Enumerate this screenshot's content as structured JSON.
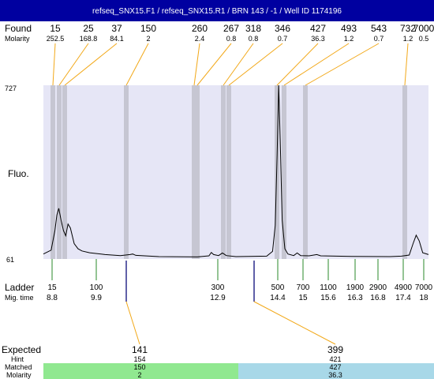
{
  "header": {
    "title": "refseq_SNX15.F1 / refseq_SNX15.R1 / BRN 143 / -1 / Well ID 1174196"
  },
  "labels": {
    "found": "Found",
    "molarity": "Molarity",
    "fluo": "Fluo.",
    "ladder": "Ladder",
    "mig_time": "Mig. time",
    "expected": "Expected",
    "hint": "Hint",
    "matched": "Matched",
    "molarity_bottom": "Molarity"
  },
  "colors": {
    "plot_bg": "#e6e6f6",
    "found_band": "#c6c6d2",
    "found_line": "#f2a818",
    "ladder_tick": "#2a8a2a",
    "ladder_marker": "#2a2a8a",
    "matched_green": "#90e890",
    "matched_blue": "#a8d8e8",
    "trace": "#000000"
  },
  "chart_data": {
    "type": "line",
    "title": "refseq_SNX15.F1 / refseq_SNX15.R1 / BRN 143 / -1 / Well ID 1174196",
    "ylabel": "Fluo.",
    "ylim": [
      61,
      727
    ],
    "y_ticks": [
      "727",
      "61"
    ],
    "grid": false,
    "found_peaks": [
      {
        "size": "15",
        "molarity": "252.5"
      },
      {
        "size": "25",
        "molarity": "168.8"
      },
      {
        "size": "37",
        "molarity": "84.1"
      },
      {
        "size": "150",
        "molarity": "2"
      },
      {
        "size": "260",
        "molarity": "2.4"
      },
      {
        "size": "267",
        "molarity": "0.8"
      },
      {
        "size": "318",
        "molarity": "0.8"
      },
      {
        "size": "346",
        "molarity": "0.7"
      },
      {
        "size": "427",
        "molarity": "36.3"
      },
      {
        "size": "493",
        "molarity": "1.2"
      },
      {
        "size": "543",
        "molarity": "0.7"
      },
      {
        "size": "732",
        "molarity": "1.2"
      },
      {
        "size": "7000",
        "molarity": "0.5"
      }
    ],
    "ladder": [
      {
        "size": "15",
        "mig_time": "8.8"
      },
      {
        "size": "100",
        "mig_time": "9.9"
      },
      {
        "size": "300",
        "mig_time": "12.9"
      },
      {
        "size": "500",
        "mig_time": "14.4"
      },
      {
        "size": "700",
        "mig_time": "15"
      },
      {
        "size": "1100",
        "mig_time": "15.6"
      },
      {
        "size": "1900",
        "mig_time": "16.3"
      },
      {
        "size": "2900",
        "mig_time": "16.8"
      },
      {
        "size": "4900",
        "mig_time": "17.4"
      },
      {
        "size": "7000",
        "mig_time": "18"
      }
    ],
    "expected": [
      {
        "expected": "141",
        "hint": "154",
        "matched": "150",
        "molarity": "2"
      },
      {
        "expected": "399",
        "hint": "421",
        "matched": "427",
        "molarity": "36.3"
      }
    ],
    "trace_points": [
      [
        0.0,
        80
      ],
      [
        2.0,
        95
      ],
      [
        3.0,
        170
      ],
      [
        3.5,
        230
      ],
      [
        4.0,
        255
      ],
      [
        4.6,
        210
      ],
      [
        5.2,
        170
      ],
      [
        5.8,
        150
      ],
      [
        6.4,
        195
      ],
      [
        7.0,
        180
      ],
      [
        8.0,
        120
      ],
      [
        9.0,
        100
      ],
      [
        10.0,
        92
      ],
      [
        12.0,
        85
      ],
      [
        16.0,
        78
      ],
      [
        20.0,
        74
      ],
      [
        22.5,
        78
      ],
      [
        23.2,
        80
      ],
      [
        24.0,
        75
      ],
      [
        30.0,
        70
      ],
      [
        40.0,
        69
      ],
      [
        43.0,
        73
      ],
      [
        43.6,
        86
      ],
      [
        44.2,
        78
      ],
      [
        45.5,
        74
      ],
      [
        46.5,
        84
      ],
      [
        47.5,
        74
      ],
      [
        50.0,
        70
      ],
      [
        58.0,
        72
      ],
      [
        59.5,
        90
      ],
      [
        60.2,
        190
      ],
      [
        60.7,
        460
      ],
      [
        61.1,
        727
      ],
      [
        61.5,
        520
      ],
      [
        62.0,
        210
      ],
      [
        62.7,
        100
      ],
      [
        63.5,
        80
      ],
      [
        65.0,
        74
      ],
      [
        65.9,
        84
      ],
      [
        66.8,
        74
      ],
      [
        69.0,
        73
      ],
      [
        71.0,
        78
      ],
      [
        72.0,
        73
      ],
      [
        76.0,
        72
      ],
      [
        80.0,
        71
      ],
      [
        90.0,
        70
      ],
      [
        93.0,
        72
      ],
      [
        95.0,
        76
      ],
      [
        96.0,
        120
      ],
      [
        96.8,
        152
      ],
      [
        97.6,
        130
      ],
      [
        98.5,
        85
      ],
      [
        100.0,
        78
      ]
    ]
  }
}
